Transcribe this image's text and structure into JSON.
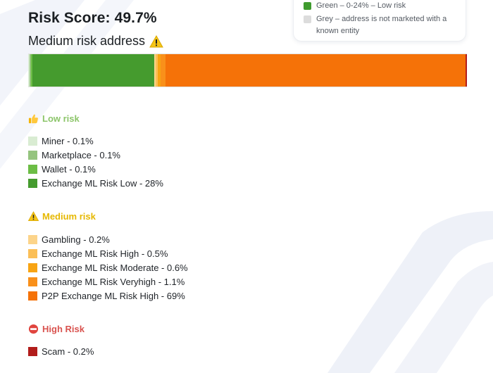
{
  "score": {
    "title": "Risk Score: 49.7%",
    "subtitle": "Medium risk address"
  },
  "legend": {
    "items": [
      {
        "label": "Green – 0-24% – Low risk",
        "color": "#3f9b2e"
      },
      {
        "label": "Grey – address is not marketed with a known entity",
        "color": "#dcdcdc"
      }
    ]
  },
  "bar": {
    "segments": [
      {
        "name": "Miner",
        "percent": 0.1,
        "color": "#d9ecd2"
      },
      {
        "name": "Marketplace",
        "percent": 0.1,
        "color": "#95c47e"
      },
      {
        "name": "Wallet",
        "percent": 0.1,
        "color": "#6cbd45"
      },
      {
        "name": "Exchange ML Risk Low",
        "percent": 28,
        "color": "#459b2e"
      },
      {
        "name": "Gambling",
        "percent": 0.2,
        "color": "#fcd48a"
      },
      {
        "name": "Exchange ML Risk High",
        "percent": 0.5,
        "color": "#fbbf57"
      },
      {
        "name": "Exchange ML Risk Moderate",
        "percent": 0.6,
        "color": "#f8a413"
      },
      {
        "name": "Exchange ML Risk Veryhigh",
        "percent": 1.1,
        "color": "#f9901a"
      },
      {
        "name": "P2P Exchange ML Risk High",
        "percent": 69,
        "color": "#f57208"
      },
      {
        "name": "Scam",
        "percent": 0.2,
        "color": "#b21d1b"
      }
    ]
  },
  "sections": {
    "low": {
      "title": "Low risk",
      "items": [
        {
          "label": "Miner - 0.1%",
          "color": "#d9ecd2"
        },
        {
          "label": "Marketplace - 0.1%",
          "color": "#95c47e"
        },
        {
          "label": "Wallet - 0.1%",
          "color": "#6cbd45"
        },
        {
          "label": "Exchange ML Risk Low - 28%",
          "color": "#459b2e"
        }
      ]
    },
    "medium": {
      "title": "Medium risk",
      "items": [
        {
          "label": "Gambling - 0.2%",
          "color": "#fcd48a"
        },
        {
          "label": "Exchange ML Risk High - 0.5%",
          "color": "#fbbf57"
        },
        {
          "label": "Exchange ML Risk Moderate - 0.6%",
          "color": "#f8a413"
        },
        {
          "label": "Exchange ML Risk Veryhigh - 1.1%",
          "color": "#f9901a"
        },
        {
          "label": "P2P Exchange ML Risk High - 69%",
          "color": "#f57208"
        }
      ]
    },
    "high": {
      "title": "High Risk",
      "items": [
        {
          "label": "Scam - 0.2%",
          "color": "#b21d1b"
        }
      ]
    }
  },
  "icons": {
    "low": "thumbs-up-icon",
    "medium": "warning-icon",
    "high": "no-entry-icon"
  }
}
